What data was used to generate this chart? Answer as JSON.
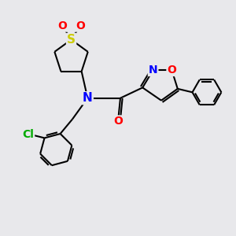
{
  "bg_color": "#e8e8eb",
  "bond_color": "#000000",
  "bond_width": 1.5,
  "atom_colors": {
    "S": "#cccc00",
    "O": "#ff0000",
    "N": "#0000ff",
    "Cl": "#00aa00"
  },
  "font_size_large": 10,
  "font_size_small": 9
}
